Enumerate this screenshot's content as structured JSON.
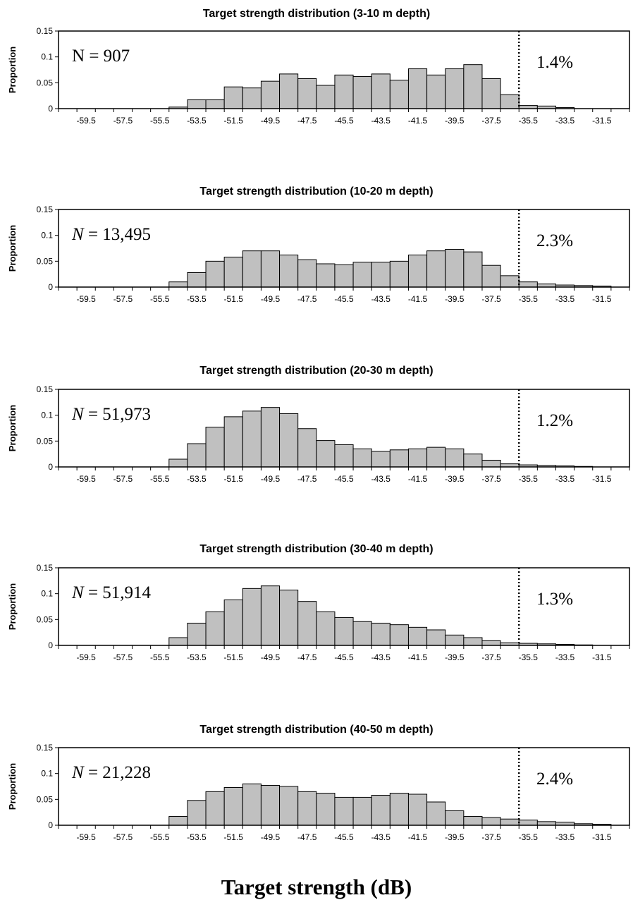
{
  "xlabel": "Target strength (dB)",
  "chart_data": [
    {
      "type": "bar",
      "title": "Target strength distribution (3-10 m depth)",
      "ylabel": "Proportion",
      "annotation_n": "907",
      "annotation_n_italic": false,
      "annotation_pct": "1.4%",
      "x": [
        -60.5,
        -59.5,
        -58.5,
        -57.5,
        -56.5,
        -55.5,
        -54.5,
        -53.5,
        -52.5,
        -51.5,
        -50.5,
        -49.5,
        -48.5,
        -47.5,
        -46.5,
        -45.5,
        -44.5,
        -43.5,
        -42.5,
        -41.5,
        -40.5,
        -39.5,
        -38.5,
        -37.5,
        -36.5,
        -35.5,
        -34.5,
        -33.5,
        -32.5,
        -31.5,
        -30.5
      ],
      "values": [
        0,
        0,
        0,
        0,
        0,
        0,
        0.003,
        0.017,
        0.017,
        0.042,
        0.04,
        0.053,
        0.067,
        0.058,
        0.045,
        0.065,
        0.062,
        0.067,
        0.055,
        0.077,
        0.065,
        0.077,
        0.085,
        0.058,
        0.027,
        0.006,
        0.005,
        0.002,
        0,
        0,
        0
      ],
      "cutoff": -36.0,
      "xticks": [
        -59.5,
        -57.5,
        -55.5,
        -53.5,
        -51.5,
        -49.5,
        -47.5,
        -45.5,
        -43.5,
        -41.5,
        -39.5,
        -37.5,
        -35.5,
        -33.5,
        -31.5
      ],
      "yticks": [
        "0",
        "0.05",
        "0.1",
        "0.15"
      ],
      "ylim": [
        0,
        0.15
      ]
    },
    {
      "type": "bar",
      "title": "Target strength distribution (10-20 m depth)",
      "ylabel": "Proportion",
      "annotation_n": "13,495",
      "annotation_n_italic": true,
      "annotation_pct": "2.3%",
      "x": [
        -60.5,
        -59.5,
        -58.5,
        -57.5,
        -56.5,
        -55.5,
        -54.5,
        -53.5,
        -52.5,
        -51.5,
        -50.5,
        -49.5,
        -48.5,
        -47.5,
        -46.5,
        -45.5,
        -44.5,
        -43.5,
        -42.5,
        -41.5,
        -40.5,
        -39.5,
        -38.5,
        -37.5,
        -36.5,
        -35.5,
        -34.5,
        -33.5,
        -32.5,
        -31.5,
        -30.5
      ],
      "values": [
        0,
        0,
        0,
        0,
        0,
        0,
        0.01,
        0.028,
        0.05,
        0.058,
        0.07,
        0.07,
        0.062,
        0.053,
        0.045,
        0.043,
        0.048,
        0.048,
        0.05,
        0.062,
        0.07,
        0.073,
        0.068,
        0.042,
        0.022,
        0.01,
        0.006,
        0.004,
        0.003,
        0.002,
        0
      ],
      "cutoff": -36.0,
      "xticks": [
        -59.5,
        -57.5,
        -55.5,
        -53.5,
        -51.5,
        -49.5,
        -47.5,
        -45.5,
        -43.5,
        -41.5,
        -39.5,
        -37.5,
        -35.5,
        -33.5,
        -31.5
      ],
      "yticks": [
        "0",
        "0.05",
        "0.1",
        "0.15"
      ],
      "ylim": [
        0,
        0.15
      ]
    },
    {
      "type": "bar",
      "title": "Target strength distribution (20-30 m depth)",
      "ylabel": "Proportion",
      "annotation_n": "51,973",
      "annotation_n_italic": true,
      "annotation_pct": "1.2%",
      "x": [
        -60.5,
        -59.5,
        -58.5,
        -57.5,
        -56.5,
        -55.5,
        -54.5,
        -53.5,
        -52.5,
        -51.5,
        -50.5,
        -49.5,
        -48.5,
        -47.5,
        -46.5,
        -45.5,
        -44.5,
        -43.5,
        -42.5,
        -41.5,
        -40.5,
        -39.5,
        -38.5,
        -37.5,
        -36.5,
        -35.5,
        -34.5,
        -33.5,
        -32.5,
        -31.5,
        -30.5
      ],
      "values": [
        0,
        0,
        0,
        0,
        0,
        0,
        0.015,
        0.045,
        0.077,
        0.097,
        0.108,
        0.115,
        0.103,
        0.074,
        0.051,
        0.043,
        0.035,
        0.03,
        0.033,
        0.035,
        0.038,
        0.035,
        0.025,
        0.013,
        0.006,
        0.004,
        0.003,
        0.002,
        0.001,
        0,
        0
      ],
      "cutoff": -36.0,
      "xticks": [
        -59.5,
        -57.5,
        -55.5,
        -53.5,
        -51.5,
        -49.5,
        -47.5,
        -45.5,
        -43.5,
        -41.5,
        -39.5,
        -37.5,
        -35.5,
        -33.5,
        -31.5
      ],
      "yticks": [
        "0",
        "0.05",
        "0.1",
        "0.15"
      ],
      "ylim": [
        0,
        0.15
      ]
    },
    {
      "type": "bar",
      "title": "Target strength distribution (30-40 m depth)",
      "ylabel": "Proportion",
      "annotation_n": "51,914",
      "annotation_n_italic": true,
      "annotation_pct": "1.3%",
      "x": [
        -60.5,
        -59.5,
        -58.5,
        -57.5,
        -56.5,
        -55.5,
        -54.5,
        -53.5,
        -52.5,
        -51.5,
        -50.5,
        -49.5,
        -48.5,
        -47.5,
        -46.5,
        -45.5,
        -44.5,
        -43.5,
        -42.5,
        -41.5,
        -40.5,
        -39.5,
        -38.5,
        -37.5,
        -36.5,
        -35.5,
        -34.5,
        -33.5,
        -32.5,
        -31.5,
        -30.5
      ],
      "values": [
        0,
        0,
        0,
        0,
        0,
        0,
        0.015,
        0.043,
        0.065,
        0.088,
        0.11,
        0.115,
        0.107,
        0.085,
        0.065,
        0.054,
        0.046,
        0.043,
        0.04,
        0.035,
        0.03,
        0.02,
        0.015,
        0.009,
        0.005,
        0.004,
        0.003,
        0.002,
        0.001,
        0,
        0
      ],
      "cutoff": -36.0,
      "xticks": [
        -59.5,
        -57.5,
        -55.5,
        -53.5,
        -51.5,
        -49.5,
        -47.5,
        -45.5,
        -43.5,
        -41.5,
        -39.5,
        -37.5,
        -35.5,
        -33.5,
        -31.5
      ],
      "yticks": [
        "0",
        "0.05",
        "0.1",
        "0.15"
      ],
      "ylim": [
        0,
        0.15
      ]
    },
    {
      "type": "bar",
      "title": "Target strength distribution (40-50 m depth)",
      "ylabel": "Proportion",
      "annotation_n": "21,228",
      "annotation_n_italic": true,
      "annotation_pct": "2.4%",
      "x": [
        -60.5,
        -59.5,
        -58.5,
        -57.5,
        -56.5,
        -55.5,
        -54.5,
        -53.5,
        -52.5,
        -51.5,
        -50.5,
        -49.5,
        -48.5,
        -47.5,
        -46.5,
        -45.5,
        -44.5,
        -43.5,
        -42.5,
        -41.5,
        -40.5,
        -39.5,
        -38.5,
        -37.5,
        -36.5,
        -35.5,
        -34.5,
        -33.5,
        -32.5,
        -31.5,
        -30.5
      ],
      "values": [
        0,
        0,
        0,
        0,
        0,
        0,
        0.017,
        0.048,
        0.065,
        0.073,
        0.08,
        0.077,
        0.075,
        0.065,
        0.062,
        0.054,
        0.054,
        0.058,
        0.062,
        0.06,
        0.045,
        0.028,
        0.017,
        0.015,
        0.012,
        0.01,
        0.007,
        0.006,
        0.003,
        0.002,
        0
      ],
      "cutoff": -36.0,
      "xticks": [
        -59.5,
        -57.5,
        -55.5,
        -53.5,
        -51.5,
        -49.5,
        -47.5,
        -45.5,
        -43.5,
        -41.5,
        -39.5,
        -37.5,
        -35.5,
        -33.5,
        -31.5
      ],
      "yticks": [
        "0",
        "0.05",
        "0.1",
        "0.15"
      ],
      "ylim": [
        0,
        0.15
      ]
    }
  ]
}
